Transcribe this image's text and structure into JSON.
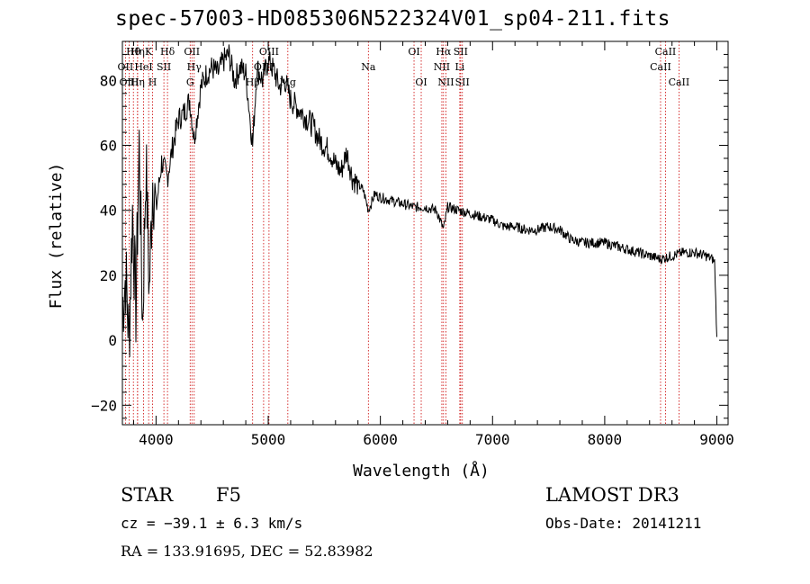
{
  "header": {
    "title": "spec-57003-HD085306N522324V01_sp04-211.fits"
  },
  "info": {
    "object_type": "STAR",
    "subclass": "F5",
    "cz_text": "cz = −39.1 ± 6.3 km/s",
    "radec_text": "RA = 133.91695, DEC =  52.83982",
    "survey": "LAMOST DR3",
    "obs_date_text": "Obs-Date: 20141211"
  },
  "colors": {
    "line": "#000000",
    "marker": "#cc0000",
    "background": "#ffffff"
  },
  "chart_data": {
    "type": "line",
    "title": "spec-57003-HD085306N522324V01_sp04-211.fits",
    "xlabel": "Wavelength (Å)",
    "ylabel": "Flux (relative)",
    "xlim": [
      3700,
      9100
    ],
    "ylim": [
      -26,
      92
    ],
    "xticks": [
      4000,
      5000,
      6000,
      7000,
      8000,
      9000
    ],
    "yticks": [
      -20,
      0,
      20,
      40,
      60,
      80
    ],
    "series": [
      {
        "name": "flux",
        "x": [
          3700,
          3730,
          3760,
          3790,
          3820,
          3850,
          3880,
          3910,
          3940,
          3970,
          4000,
          4050,
          4100,
          4150,
          4200,
          4250,
          4300,
          4340,
          4400,
          4450,
          4500,
          4550,
          4600,
          4650,
          4700,
          4750,
          4800,
          4861,
          4900,
          4950,
          5000,
          5050,
          5100,
          5150,
          5200,
          5250,
          5300,
          5350,
          5400,
          5450,
          5500,
          5550,
          5600,
          5650,
          5700,
          5750,
          5800,
          5850,
          5893,
          5950,
          6000,
          6100,
          6200,
          6300,
          6400,
          6500,
          6563,
          6600,
          6700,
          6800,
          6900,
          7000,
          7100,
          7200,
          7300,
          7400,
          7500,
          7600,
          7700,
          7800,
          7900,
          8000,
          8100,
          8200,
          8300,
          8400,
          8500,
          8600,
          8700,
          8800,
          8900,
          8960,
          8980,
          8990,
          9000
        ],
        "y": [
          10,
          20,
          0,
          40,
          10,
          60,
          5,
          55,
          15,
          50,
          40,
          55,
          50,
          60,
          68,
          70,
          74,
          62,
          78,
          82,
          84,
          82,
          86,
          88,
          80,
          84,
          82,
          60,
          84,
          80,
          86,
          83,
          78,
          80,
          74,
          72,
          70,
          68,
          66,
          62,
          60,
          58,
          54,
          52,
          58,
          50,
          48,
          46,
          40,
          45,
          44,
          43,
          42,
          41,
          41,
          40,
          34,
          41,
          40,
          39,
          38,
          37,
          35,
          35,
          34,
          34,
          35,
          34,
          31,
          30,
          30,
          30,
          29,
          28,
          27,
          26,
          25,
          26,
          27,
          27,
          26,
          25,
          24,
          12,
          1
        ]
      }
    ],
    "line_markers": [
      {
        "label": "Hθ",
        "x": 3798,
        "row": 1
      },
      {
        "label": "Hη",
        "x": 3835,
        "row": 1
      },
      {
        "label": "K",
        "x": 3934,
        "row": 1
      },
      {
        "label": "Hδ",
        "x": 4102,
        "row": 1
      },
      {
        "label": "OII",
        "x": 3727,
        "row": 2
      },
      {
        "label": "HeI",
        "x": 3889,
        "row": 2
      },
      {
        "label": "SII",
        "x": 4070,
        "row": 2
      },
      {
        "label": "OIII",
        "x": 3760,
        "row": 3
      },
      {
        "label": "Hη",
        "x": 3835,
        "row": 3
      },
      {
        "label": "H",
        "x": 3969,
        "row": 3
      },
      {
        "label": "OII",
        "x": 4320,
        "row": 1
      },
      {
        "label": "Hγ",
        "x": 4340,
        "row": 2
      },
      {
        "label": "G",
        "x": 4304,
        "row": 3
      },
      {
        "label": "OIII",
        "x": 5007,
        "row": 1
      },
      {
        "label": "OIII",
        "x": 4959,
        "row": 2
      },
      {
        "label": "Hβ",
        "x": 4861,
        "row": 3
      },
      {
        "label": "Mg",
        "x": 5175,
        "row": 3
      },
      {
        "label": "Na",
        "x": 5893,
        "row": 2
      },
      {
        "label": "OI",
        "x": 6300,
        "row": 1
      },
      {
        "label": "OI",
        "x": 6364,
        "row": 3
      },
      {
        "label": "Hα",
        "x": 6563,
        "row": 1
      },
      {
        "label": "SII",
        "x": 6716,
        "row": 1
      },
      {
        "label": "NII",
        "x": 6548,
        "row": 2
      },
      {
        "label": "Li",
        "x": 6708,
        "row": 2
      },
      {
        "label": "NII",
        "x": 6584,
        "row": 3
      },
      {
        "label": "SII",
        "x": 6731,
        "row": 3
      },
      {
        "label": "CaII",
        "x": 8542,
        "row": 1
      },
      {
        "label": "CaII",
        "x": 8498,
        "row": 2
      },
      {
        "label": "CaII",
        "x": 8662,
        "row": 3
      }
    ]
  }
}
